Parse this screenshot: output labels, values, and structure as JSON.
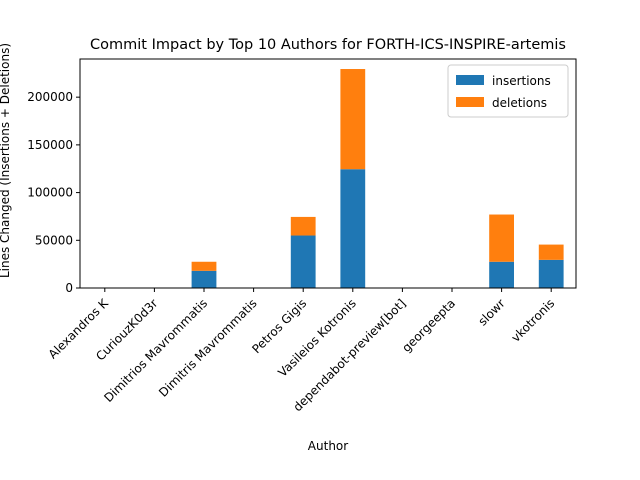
{
  "chart_data": {
    "type": "bar",
    "stacked": true,
    "title": "Commit Impact by Top 10 Authors for FORTH-ICS-INSPIRE-artemis",
    "xlabel": "Author",
    "ylabel": "Lines Changed (Insertions + Deletions)",
    "categories": [
      "Alexandros K",
      "CuriouzK0d3r",
      "Dimitrios Mavrommatis",
      "Dimitris Mavrommatis",
      "Petros Gigis",
      "Vasileios Kotronis",
      "dependabot-preview[bot]",
      "georgeepta",
      "slowr",
      "vkotronis"
    ],
    "series": [
      {
        "name": "insertions",
        "color": "#1f77b4",
        "values": [
          0,
          0,
          18000,
          0,
          55000,
          124500,
          0,
          0,
          27500,
          29500
        ]
      },
      {
        "name": "deletions",
        "color": "#ff7f0e",
        "values": [
          0,
          0,
          9500,
          0,
          19500,
          105000,
          0,
          0,
          49500,
          16000
        ]
      }
    ],
    "ylim": [
      0,
      240000
    ],
    "yticks": [
      0,
      50000,
      100000,
      150000,
      200000
    ],
    "legend_position": "top-right",
    "grid": false
  }
}
